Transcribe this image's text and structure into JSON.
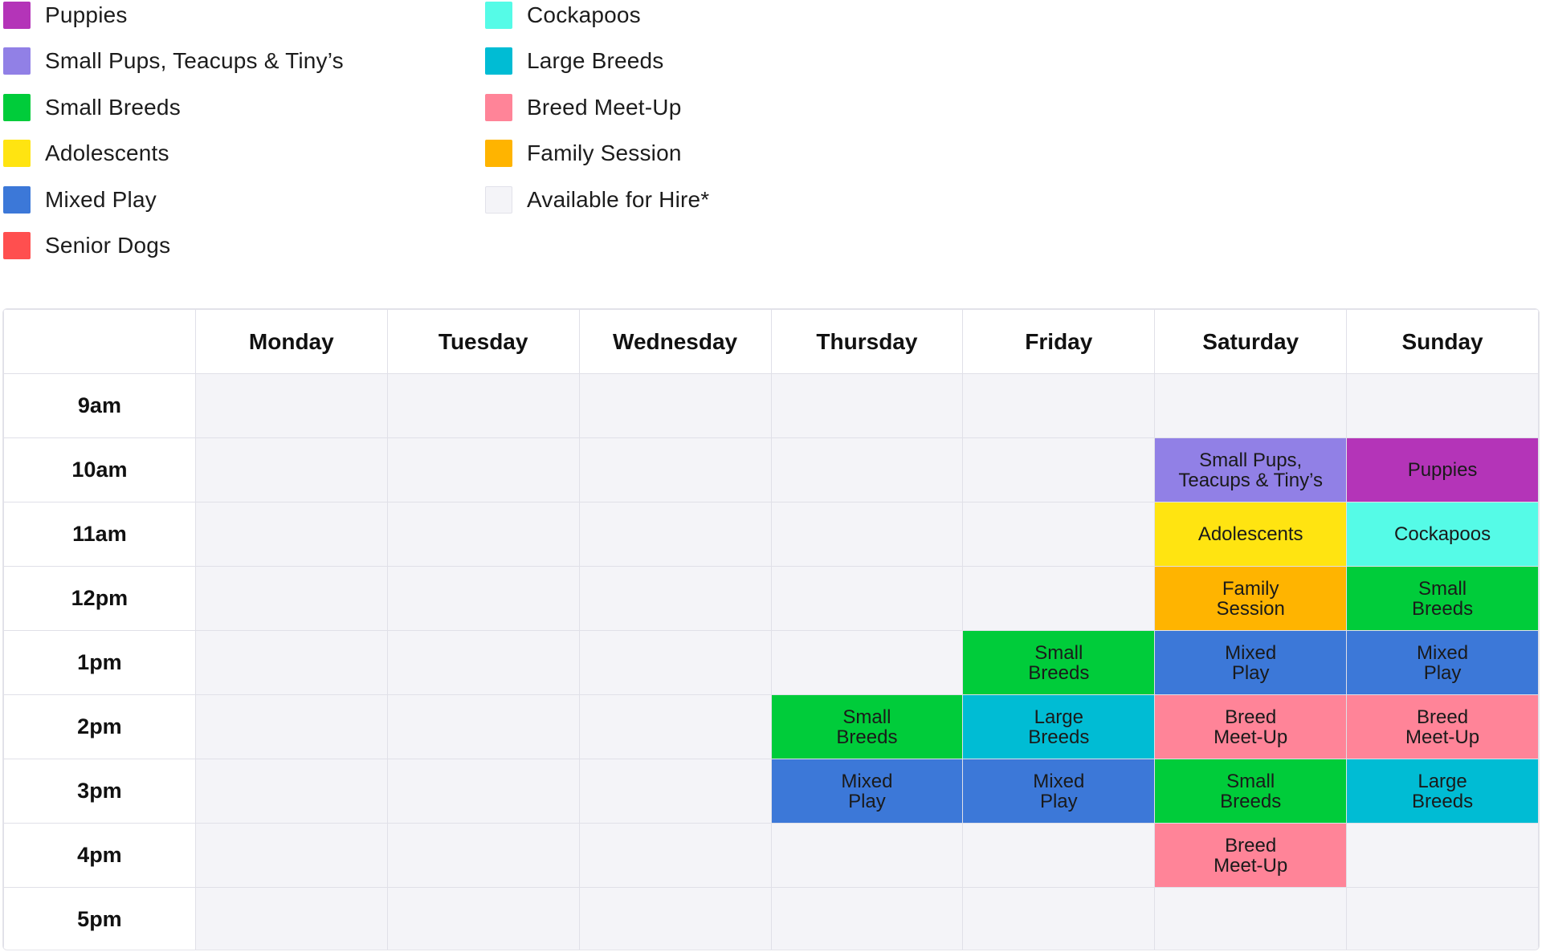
{
  "legend": {
    "column1": [
      {
        "label": "Puppies",
        "color": "#b434b8"
      },
      {
        "label": "Small Pups, Teacups & Tiny’s",
        "color": "#9180e6"
      },
      {
        "label": "Small Breeds",
        "color": "#00cc3a"
      },
      {
        "label": "Adolescents",
        "color": "#ffe411"
      },
      {
        "label": "Mixed Play",
        "color": "#3c78d8"
      },
      {
        "label": "Senior Dogs",
        "color": "#ff4f4f"
      }
    ],
    "column2": [
      {
        "label": "Cockapoos",
        "color": "#55fbe7"
      },
      {
        "label": "Large Breeds",
        "color": "#00bcd4"
      },
      {
        "label": "Breed Meet-Up",
        "color": "#ff8498"
      },
      {
        "label": "Family Session",
        "color": "#ffb400"
      },
      {
        "label": "Available for Hire*",
        "color": "#f4f4f8"
      }
    ]
  },
  "schedule": {
    "days": [
      "Monday",
      "Tuesday",
      "Wednesday",
      "Thursday",
      "Friday",
      "Saturday",
      "Sunday"
    ],
    "available_color": "#f4f4f8",
    "rows": [
      {
        "time": "9am",
        "slots": [
          null,
          null,
          null,
          null,
          null,
          null,
          null
        ]
      },
      {
        "time": "10am",
        "slots": [
          null,
          null,
          null,
          null,
          null,
          {
            "text": "Small Pups,\nTeacups & Tiny’s",
            "color": "#9180e6"
          },
          {
            "text": "Puppies",
            "color": "#b434b8"
          }
        ]
      },
      {
        "time": "11am",
        "slots": [
          null,
          null,
          null,
          null,
          null,
          {
            "text": "Adolescents",
            "color": "#ffe411"
          },
          {
            "text": "Cockapoos",
            "color": "#55fbe7"
          }
        ]
      },
      {
        "time": "12pm",
        "slots": [
          null,
          null,
          null,
          null,
          null,
          {
            "text": "Family\nSession",
            "color": "#ffb400"
          },
          {
            "text": "Small\nBreeds",
            "color": "#00cc3a"
          }
        ]
      },
      {
        "time": "1pm",
        "slots": [
          null,
          null,
          null,
          null,
          {
            "text": "Small\nBreeds",
            "color": "#00cc3a"
          },
          {
            "text": "Mixed\nPlay",
            "color": "#3c78d8"
          },
          {
            "text": "Mixed\nPlay",
            "color": "#3c78d8"
          }
        ]
      },
      {
        "time": "2pm",
        "slots": [
          null,
          null,
          null,
          {
            "text": "Small\nBreeds",
            "color": "#00cc3a"
          },
          {
            "text": "Large\nBreeds",
            "color": "#00bcd4"
          },
          {
            "text": "Breed\nMeet-Up",
            "color": "#ff8498"
          },
          {
            "text": "Breed\nMeet-Up",
            "color": "#ff8498"
          }
        ]
      },
      {
        "time": "3pm",
        "slots": [
          null,
          null,
          null,
          {
            "text": "Mixed\nPlay",
            "color": "#3c78d8"
          },
          {
            "text": "Mixed\nPlay",
            "color": "#3c78d8"
          },
          {
            "text": "Small\nBreeds",
            "color": "#00cc3a"
          },
          {
            "text": "Large\nBreeds",
            "color": "#00bcd4"
          }
        ]
      },
      {
        "time": "4pm",
        "slots": [
          null,
          null,
          null,
          null,
          null,
          {
            "text": "Breed\nMeet-Up",
            "color": "#ff8498"
          },
          null
        ]
      },
      {
        "time": "5pm",
        "slots": [
          null,
          null,
          null,
          null,
          null,
          null,
          null
        ]
      }
    ]
  }
}
